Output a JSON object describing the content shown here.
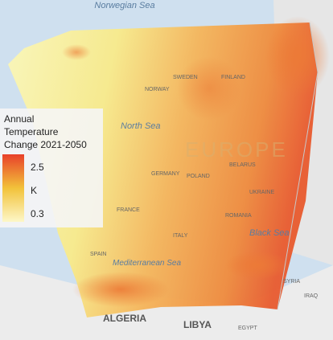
{
  "legend": {
    "title_lines": [
      "Annual",
      "Temperature",
      "Change 2021-2050"
    ],
    "max": 2.5,
    "unit": "K",
    "min": 0.3
  },
  "map_labels": {
    "seas": [
      "Norwegian Sea",
      "North Sea",
      "Mediterranean Sea",
      "Black Sea"
    ],
    "region": "EUROPE",
    "countries": [
      "SWEDEN",
      "FINLAND",
      "NORWAY",
      "GERMANY",
      "POLAND",
      "BELARUS",
      "UKRAINE",
      "FRANCE",
      "ROMANIA",
      "SPAIN",
      "ITALY",
      "ALGERIA",
      "LIBYA",
      "EGYPT",
      "SYRIA",
      "IRAQ"
    ]
  }
}
